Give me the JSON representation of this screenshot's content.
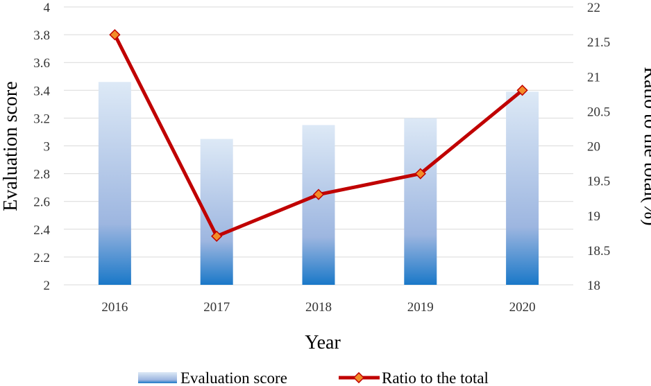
{
  "chart_data": {
    "type": "bar+line",
    "title": "",
    "categories": [
      "2016",
      "2017",
      "2018",
      "2019",
      "2020"
    ],
    "series": [
      {
        "name": "Evaluation score",
        "type": "bar",
        "axis": "left",
        "values": [
          3.46,
          3.05,
          3.15,
          3.2,
          3.39
        ]
      },
      {
        "name": "Ratio to the total",
        "type": "line",
        "axis": "right",
        "values": [
          21.6,
          18.7,
          19.3,
          19.6,
          20.8
        ]
      }
    ],
    "xlabel": "Year",
    "ylabel": "Evaluation score",
    "y2label": "Ratio to the total(%)",
    "ylim": [
      2,
      4
    ],
    "y2lim": [
      18,
      22
    ],
    "yticks": [
      "2",
      "2.2",
      "2.4",
      "2.6",
      "2.8",
      "3",
      "3.2",
      "3.4",
      "3.6",
      "3.8",
      "4"
    ],
    "y2ticks": [
      "18",
      "18.5",
      "19",
      "19.5",
      "20",
      "20.5",
      "21",
      "21.5",
      "22"
    ],
    "grid": true,
    "legend": "bottom"
  },
  "colors": {
    "bar_top": "#dde9f6",
    "bar_mid": "#9db6e0",
    "bar_bottom": "#1a78c8",
    "line": "#c00000",
    "marker": "#f28c28",
    "grid": "#d9d9d9"
  }
}
